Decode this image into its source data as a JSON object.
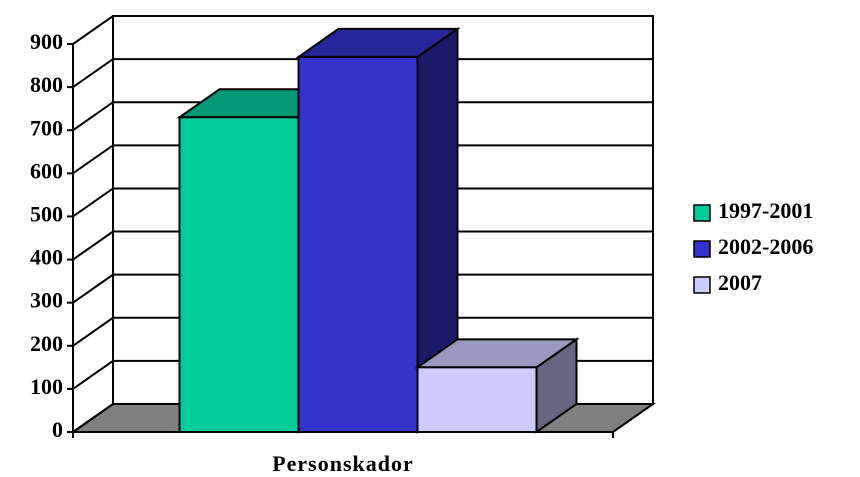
{
  "chart_data": {
    "type": "bar3d",
    "categories": [
      "Personskador"
    ],
    "series": [
      {
        "name": "1997-2001",
        "color": "#00CC99",
        "values": [
          730
        ]
      },
      {
        "name": "2002-2006",
        "color": "#3333CC",
        "values": [
          870
        ]
      },
      {
        "name": "2007",
        "color": "#CCCCFF",
        "values": [
          150
        ]
      }
    ],
    "ylim": [
      0,
      900
    ],
    "yticks": [
      0,
      100,
      200,
      300,
      400,
      500,
      600,
      700,
      800,
      900
    ],
    "grid": true,
    "legend": "right"
  }
}
